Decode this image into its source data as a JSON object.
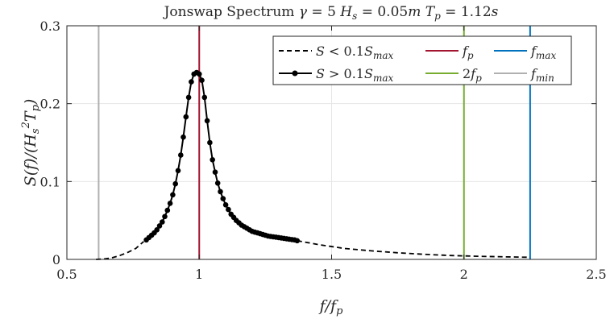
{
  "chart_data": {
    "type": "line",
    "title": "Jonswap Spectrum γ = 5 H_s = 0.05m T_p = 1.12s",
    "title_parts": [
      "Jonswap Spectrum ",
      "γ",
      " = 5 ",
      "H",
      "s",
      " = 0.05",
      "m",
      " ",
      "T",
      "p",
      " = 1.12",
      "s"
    ],
    "xlabel": "f/f_p",
    "ylabel": "S(f)/(H_s^2 T_p)",
    "xlim": [
      0.5,
      2.5
    ],
    "ylim": [
      0,
      0.3
    ],
    "xticks": [
      0.5,
      1,
      1.5,
      2,
      2.5
    ],
    "xtick_labels": [
      "0.5",
      "1",
      "1.5",
      "2",
      "2.5"
    ],
    "yticks": [
      0,
      0.1,
      0.2,
      0.3
    ],
    "ytick_labels": [
      "0",
      "0.1",
      "0.2",
      "0.3"
    ],
    "grid": true,
    "legend_position": "top-right",
    "series": [
      {
        "name": "S < 0.1S_max",
        "style": "dashed",
        "color": "#000000",
        "x": [
          0.61,
          0.64,
          0.67,
          0.7,
          0.73,
          0.76,
          0.79,
          1.37,
          1.45,
          1.55,
          1.65,
          1.75,
          1.85,
          1.95,
          2.05,
          2.15,
          2.25
        ],
        "y": [
          0.0,
          0.0005,
          0.002,
          0.005,
          0.009,
          0.014,
          0.023,
          0.024,
          0.019,
          0.014,
          0.011,
          0.0085,
          0.0065,
          0.005,
          0.004,
          0.0033,
          0.0027
        ]
      },
      {
        "name": "S > 0.1S_max",
        "style": "solid-markers",
        "color": "#000000",
        "x": [
          0.8,
          0.81,
          0.82,
          0.83,
          0.84,
          0.85,
          0.86,
          0.87,
          0.88,
          0.89,
          0.9,
          0.91,
          0.92,
          0.93,
          0.94,
          0.95,
          0.96,
          0.97,
          0.98,
          0.99,
          1.0,
          1.01,
          1.02,
          1.03,
          1.04,
          1.05,
          1.06,
          1.07,
          1.08,
          1.09,
          1.1,
          1.11,
          1.12,
          1.13,
          1.14,
          1.15,
          1.16,
          1.17,
          1.18,
          1.19,
          1.2,
          1.21,
          1.22,
          1.23,
          1.24,
          1.25,
          1.26,
          1.27,
          1.28,
          1.29,
          1.3,
          1.31,
          1.32,
          1.33,
          1.34,
          1.35,
          1.36,
          1.37
        ],
        "y": [
          0.025,
          0.028,
          0.031,
          0.034,
          0.038,
          0.043,
          0.048,
          0.055,
          0.063,
          0.072,
          0.083,
          0.097,
          0.114,
          0.134,
          0.157,
          0.183,
          0.208,
          0.228,
          0.238,
          0.24,
          0.238,
          0.23,
          0.208,
          0.178,
          0.15,
          0.128,
          0.112,
          0.098,
          0.087,
          0.078,
          0.07,
          0.064,
          0.058,
          0.054,
          0.05,
          0.047,
          0.044,
          0.042,
          0.04,
          0.038,
          0.036,
          0.035,
          0.034,
          0.033,
          0.032,
          0.031,
          0.03,
          0.0295,
          0.029,
          0.0285,
          0.028,
          0.0275,
          0.027,
          0.0265,
          0.026,
          0.0255,
          0.025,
          0.024
        ]
      },
      {
        "name": "f_p",
        "style": "vline",
        "color": "#A2142F",
        "x": 1.0
      },
      {
        "name": "2f_p",
        "style": "vline",
        "color": "#77AC30",
        "x": 2.0
      },
      {
        "name": "f_max",
        "style": "vline",
        "color": "#0072BD",
        "x": 2.25
      },
      {
        "name": "f_min",
        "style": "vline",
        "color": "#B0B0B0",
        "x": 0.62
      }
    ]
  }
}
